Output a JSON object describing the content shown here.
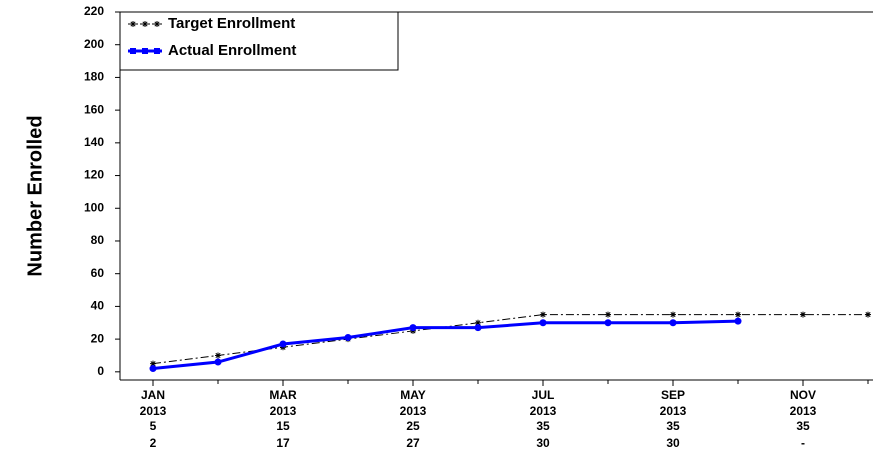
{
  "chart_data": {
    "type": "line",
    "y_label": "Number Enrolled",
    "categories": [
      "JAN",
      null,
      "MAR",
      null,
      "MAY",
      null,
      "JUL",
      null,
      "SEP",
      null,
      "NOV",
      null
    ],
    "years": [
      "2013",
      null,
      "2013",
      null,
      "2013",
      null,
      "2013",
      null,
      "2013",
      null,
      "2013",
      null
    ],
    "series": [
      {
        "name": "Target Enrollment",
        "color": "#000000",
        "marker": "asterisk",
        "dash": "dash-dot",
        "values": [
          5,
          10,
          15,
          20,
          25,
          30,
          35,
          35,
          35,
          35,
          35,
          35
        ]
      },
      {
        "name": "Actual Enrollment",
        "color": "#0000ff",
        "marker": "circle",
        "values": [
          2,
          6,
          17,
          21,
          27,
          27,
          30,
          30,
          30,
          31,
          null,
          null
        ],
        "value_labels": [
          null,
          null,
          null,
          null,
          null,
          null,
          null,
          null,
          null,
          null,
          "-",
          null
        ]
      }
    ],
    "ylim": [
      -5,
      220
    ],
    "yticks": [
      0,
      20,
      40,
      60,
      80,
      100,
      120,
      140,
      160,
      180,
      200,
      220
    ],
    "grid": false,
    "legend": "upper left"
  }
}
